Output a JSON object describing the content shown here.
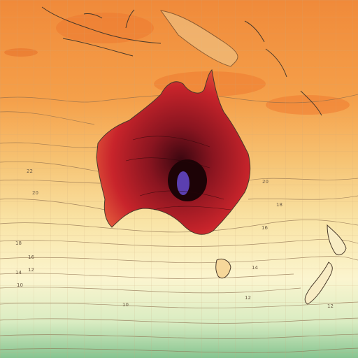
{
  "map": {
    "colors": {
      "north_band": "#f08a3a",
      "tropics_band": "#f5a04a",
      "mid_band": "#f6c373",
      "pale_band": "#f9e4a6",
      "cream_band": "#fbf5cf",
      "cool_band": "#d9ecc2",
      "south_band": "#86c490",
      "land_hot": "#c8242b",
      "land_hotter": "#8a1520",
      "land_hottest": "#3a0710",
      "hotspot": "#5b3fb0",
      "coastline": "#4a3a2a",
      "grid": "#c9a77b"
    },
    "contour_labels": [
      {
        "id": "label-22-west",
        "text": "22"
      },
      {
        "id": "label-20-west",
        "text": "20"
      },
      {
        "id": "label-18-west",
        "text": "18"
      },
      {
        "id": "label-16-west",
        "text": "16"
      },
      {
        "id": "label-14-west",
        "text": "14"
      },
      {
        "id": "label-12-west",
        "text": "12"
      },
      {
        "id": "label-10-west",
        "text": "10"
      },
      {
        "id": "label-20-east",
        "text": "20"
      },
      {
        "id": "label-18-east",
        "text": "18"
      },
      {
        "id": "label-16-east",
        "text": "16"
      },
      {
        "id": "label-14-east",
        "text": "14"
      },
      {
        "id": "label-12-east",
        "text": "12"
      },
      {
        "id": "label-10-east",
        "text": "10"
      },
      {
        "id": "label-12-south",
        "text": "12"
      }
    ]
  }
}
